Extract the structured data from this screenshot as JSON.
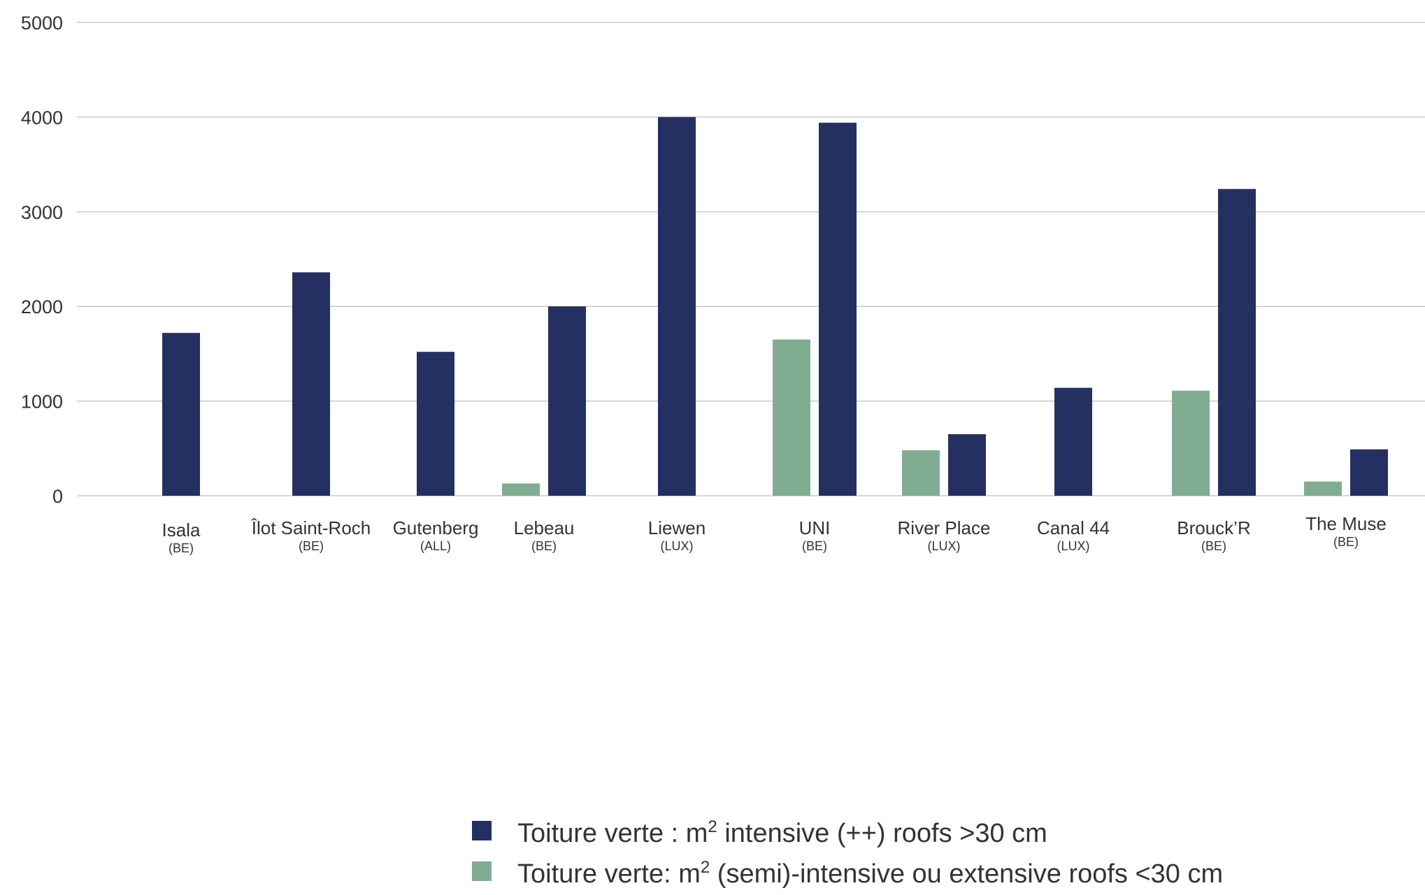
{
  "chart_data": {
    "type": "bar",
    "categories": [
      {
        "name": "Isala",
        "sub": "(BE)"
      },
      {
        "name": "Îlot Saint-Roch",
        "sub": "(BE)"
      },
      {
        "name": "Gutenberg",
        "sub": "(ALL)"
      },
      {
        "name": "Lebeau",
        "sub": "(BE)"
      },
      {
        "name": "Liewen",
        "sub": "(LUX)"
      },
      {
        "name": "UNI",
        "sub": "(BE)"
      },
      {
        "name": "River Place",
        "sub": "(LUX)"
      },
      {
        "name": "Canal 44",
        "sub": "(LUX)"
      },
      {
        "name": "Brouck’R",
        "sub": "(BE)"
      },
      {
        "name": "The Muse",
        "sub": "(BE)"
      }
    ],
    "yticks": [
      0,
      1000,
      2000,
      3000,
      4000,
      5000
    ],
    "ylim": [
      0,
      5000
    ],
    "grid": true,
    "legend_position": "bottom",
    "series": [
      {
        "key": "semi",
        "name": "Toiture verte: m² (semi)-intensive ou extensive roofs <30 cm",
        "legend_main": "Toiture verte: m",
        "legend_sup": "2",
        "legend_rest": " (semi)-intensive ou extensive roofs <30 cm",
        "color": "#80ad91",
        "values": [
          null,
          null,
          null,
          130,
          null,
          1650,
          480,
          null,
          1110,
          150
        ]
      },
      {
        "key": "intensive",
        "name": "Toiture verte : m² intensive (++) roofs >30 cm",
        "legend_main": "Toiture verte : m",
        "legend_sup": "2",
        "legend_rest": " intensive (++) roofs >30 cm",
        "color": "#243062",
        "values": [
          1720,
          2360,
          1520,
          2000,
          4000,
          3940,
          650,
          1140,
          3240,
          490
        ]
      }
    ]
  }
}
